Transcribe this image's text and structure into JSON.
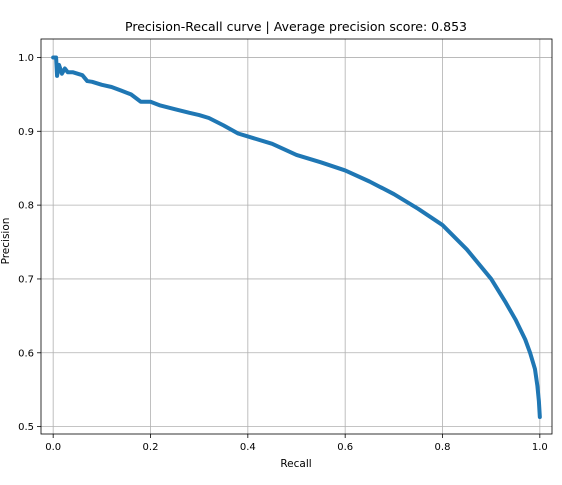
{
  "chart_data": {
    "type": "line",
    "title": "Precision-Recall curve | Average precision score: 0.853",
    "xlabel": "Recall",
    "ylabel": "Precision",
    "xlim": [
      -0.025,
      1.025
    ],
    "ylim": [
      0.49,
      1.025
    ],
    "xticks": [
      0.0,
      0.2,
      0.4,
      0.6,
      0.8,
      1.0
    ],
    "xtick_labels": [
      "0.0",
      "0.2",
      "0.4",
      "0.6",
      "0.8",
      "1.0"
    ],
    "yticks": [
      0.5,
      0.6,
      0.7,
      0.8,
      0.9,
      1.0
    ],
    "ytick_labels": [
      "0.5",
      "0.6",
      "0.7",
      "0.8",
      "0.9",
      "1.0"
    ],
    "grid": true,
    "series": [
      {
        "color": "#1f77b4",
        "points": [
          [
            0.0,
            1.0
          ],
          [
            0.006,
            1.0
          ],
          [
            0.008,
            0.975
          ],
          [
            0.012,
            0.99
          ],
          [
            0.018,
            0.978
          ],
          [
            0.024,
            0.985
          ],
          [
            0.03,
            0.98
          ],
          [
            0.04,
            0.98
          ],
          [
            0.05,
            0.978
          ],
          [
            0.06,
            0.976
          ],
          [
            0.07,
            0.968
          ],
          [
            0.08,
            0.967
          ],
          [
            0.1,
            0.963
          ],
          [
            0.12,
            0.96
          ],
          [
            0.14,
            0.955
          ],
          [
            0.16,
            0.95
          ],
          [
            0.18,
            0.94
          ],
          [
            0.2,
            0.94
          ],
          [
            0.22,
            0.935
          ],
          [
            0.25,
            0.93
          ],
          [
            0.28,
            0.925
          ],
          [
            0.3,
            0.922
          ],
          [
            0.32,
            0.918
          ],
          [
            0.35,
            0.908
          ],
          [
            0.38,
            0.897
          ],
          [
            0.4,
            0.893
          ],
          [
            0.45,
            0.883
          ],
          [
            0.5,
            0.868
          ],
          [
            0.55,
            0.858
          ],
          [
            0.6,
            0.847
          ],
          [
            0.65,
            0.832
          ],
          [
            0.7,
            0.815
          ],
          [
            0.75,
            0.795
          ],
          [
            0.8,
            0.773
          ],
          [
            0.85,
            0.74
          ],
          [
            0.9,
            0.7
          ],
          [
            0.93,
            0.668
          ],
          [
            0.95,
            0.645
          ],
          [
            0.97,
            0.618
          ],
          [
            0.98,
            0.6
          ],
          [
            0.99,
            0.578
          ],
          [
            0.995,
            0.555
          ],
          [
            0.998,
            0.535
          ],
          [
            1.0,
            0.513
          ]
        ]
      }
    ]
  }
}
